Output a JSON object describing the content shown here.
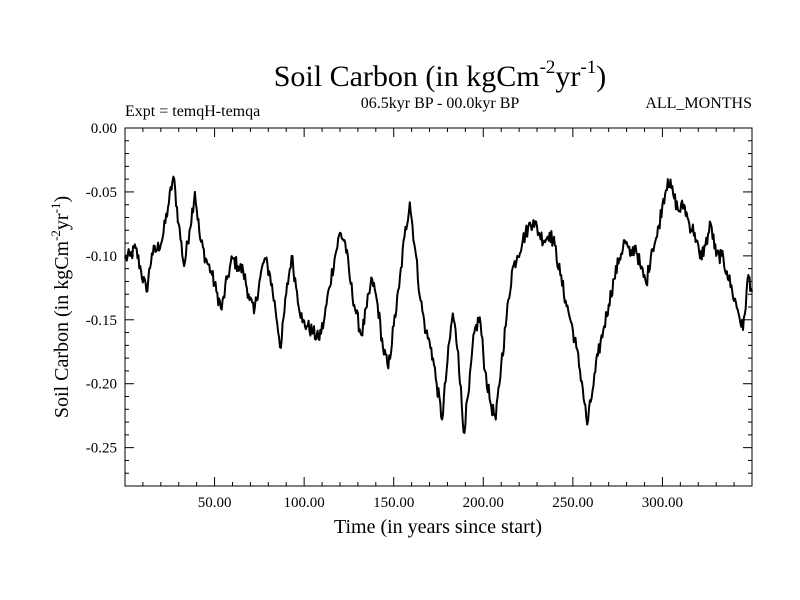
{
  "chart_data": {
    "type": "line",
    "title": "Soil Carbon (in kgCm",
    "title_sup1": "-2",
    "title_mid": "yr",
    "title_sup2": "-1",
    "title_end": ")",
    "subtitle_left": "Expt = temqH-temqa",
    "subtitle_center": "06.5kyr BP - 00.0kyr BP",
    "subtitle_right": "ALL_MONTHS",
    "xlabel": "Time (in years since start)",
    "ylabel": "Soil Carbon (in kgCm",
    "ylabel_sup1": "-2",
    "ylabel_mid": "yr",
    "ylabel_sup2": "-1",
    "ylabel_end": ")",
    "xlim": [
      0,
      350
    ],
    "ylim": [
      -0.28,
      0.0
    ],
    "xticks": [
      50,
      100,
      150,
      200,
      250,
      300
    ],
    "xtick_labels": [
      "50.00",
      "100.00",
      "150.00",
      "200.00",
      "250.00",
      "300.00"
    ],
    "yticks": [
      0.0,
      -0.05,
      -0.1,
      -0.15,
      -0.2,
      -0.25
    ],
    "ytick_labels": [
      "0.00",
      "-0.05",
      "-0.10",
      "-0.15",
      "-0.20",
      "-0.25"
    ],
    "grid": false,
    "series": [
      {
        "name": "Soil Carbon",
        "x": [
          0,
          3,
          6,
          9,
          12,
          15,
          18,
          21,
          24,
          27,
          30,
          33,
          36,
          39,
          42,
          45,
          48,
          51,
          54,
          57,
          60,
          63,
          66,
          69,
          72,
          75,
          78,
          81,
          84,
          87,
          90,
          93,
          96,
          99,
          102,
          105,
          108,
          111,
          114,
          117,
          120,
          123,
          126,
          129,
          132,
          135,
          138,
          141,
          144,
          147,
          150,
          153,
          156,
          159,
          162,
          165,
          168,
          171,
          174,
          177,
          180,
          183,
          186,
          189,
          192,
          195,
          198,
          201,
          204,
          207,
          210,
          213,
          216,
          219,
          222,
          225,
          228,
          231,
          234,
          237,
          240,
          243,
          246,
          249,
          252,
          255,
          258,
          261,
          264,
          267,
          270,
          273,
          276,
          279,
          282,
          285,
          288,
          291,
          294,
          297,
          300,
          303,
          306,
          309,
          312,
          315,
          318,
          321,
          324,
          327,
          330,
          333,
          336,
          339,
          342,
          345,
          348,
          350
        ],
        "values": [
          -0.102,
          -0.1,
          -0.094,
          -0.112,
          -0.128,
          -0.098,
          -0.095,
          -0.086,
          -0.062,
          -0.038,
          -0.075,
          -0.108,
          -0.08,
          -0.05,
          -0.087,
          -0.102,
          -0.112,
          -0.128,
          -0.142,
          -0.118,
          -0.102,
          -0.108,
          -0.112,
          -0.13,
          -0.145,
          -0.12,
          -0.102,
          -0.115,
          -0.142,
          -0.172,
          -0.13,
          -0.1,
          -0.128,
          -0.152,
          -0.155,
          -0.16,
          -0.165,
          -0.152,
          -0.125,
          -0.102,
          -0.082,
          -0.09,
          -0.122,
          -0.145,
          -0.162,
          -0.14,
          -0.118,
          -0.138,
          -0.172,
          -0.188,
          -0.155,
          -0.125,
          -0.085,
          -0.058,
          -0.095,
          -0.135,
          -0.16,
          -0.172,
          -0.2,
          -0.228,
          -0.182,
          -0.145,
          -0.175,
          -0.238,
          -0.205,
          -0.16,
          -0.148,
          -0.19,
          -0.215,
          -0.228,
          -0.185,
          -0.148,
          -0.112,
          -0.1,
          -0.088,
          -0.078,
          -0.072,
          -0.082,
          -0.088,
          -0.082,
          -0.092,
          -0.115,
          -0.135,
          -0.152,
          -0.172,
          -0.198,
          -0.232,
          -0.205,
          -0.178,
          -0.158,
          -0.138,
          -0.118,
          -0.102,
          -0.088,
          -0.1,
          -0.092,
          -0.11,
          -0.122,
          -0.095,
          -0.085,
          -0.06,
          -0.04,
          -0.052,
          -0.065,
          -0.06,
          -0.075,
          -0.082,
          -0.102,
          -0.092,
          -0.075,
          -0.1,
          -0.1,
          -0.112,
          -0.128,
          -0.142,
          -0.158,
          -0.115,
          -0.128
        ]
      }
    ]
  }
}
